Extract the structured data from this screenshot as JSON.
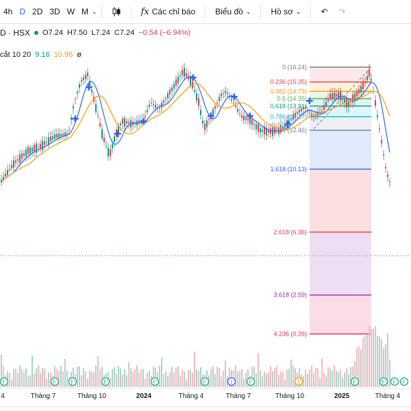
{
  "toolbar": {
    "timeframes": [
      "4h",
      "D",
      "2D",
      "3D",
      "W",
      "M"
    ],
    "active_timeframe": "D",
    "indicators_label": "Các chỉ báo",
    "chart_type_label": "Biểu đồ",
    "profile_label": "Hồ sơ"
  },
  "legend": {
    "symbol": "D · HSX",
    "open": "O7.24",
    "high": "H7.50",
    "low": "L7.24",
    "close": "C7.24",
    "change": "−0.54 (−6.94%)",
    "ma_name": "cắt 10 20",
    "ma_value_1": "9.16",
    "ma_value_2": "10.96",
    "ma_hidden": "ø"
  },
  "colors": {
    "up": "#089981",
    "down": "#f23645",
    "ma_fast": "#2962ff",
    "ma_slow": "#ff9800"
  },
  "chart_data": {
    "type": "candlestick",
    "x_ticks": [
      "4",
      "Tháng 7",
      "Tháng 10",
      "2024",
      "Tháng 4",
      "Tháng 7",
      "Tháng 10",
      "2025",
      "Tháng 4"
    ],
    "bold_ticks": [
      "2024",
      "2025"
    ],
    "fibonacci": [
      {
        "ratio": "0",
        "price": 16.24,
        "label": "0 (16.24)",
        "color": "#787b86"
      },
      {
        "ratio": "0.236",
        "price": 15.35,
        "label": "0.236 (15.35)",
        "color": "#f23645"
      },
      {
        "ratio": "0.382",
        "price": 14.79,
        "label": "0.382 (14.79)",
        "color": "#ff9800"
      },
      {
        "ratio": "0.5",
        "price": 14.35,
        "label": "0.5 (14.35)",
        "color": "#4caf50"
      },
      {
        "ratio": "0.618",
        "price": 13.91,
        "label": "0.618 (13.91)",
        "color": "#089981"
      },
      {
        "ratio": "0.786",
        "price": 13.27,
        "label": "0.786 (13.27)",
        "color": "#00bcd4"
      },
      {
        "ratio": "1",
        "price": 12.46,
        "label": "1 (12.46)",
        "color": "#787b86"
      },
      {
        "ratio": "1.618",
        "price": 10.13,
        "label": "1.618 (10.13)",
        "color": "#2962ff"
      },
      {
        "ratio": "2.618",
        "price": 6.36,
        "label": "2.618 (6.36)",
        "color": "#f23645"
      },
      {
        "ratio": "3.618",
        "price": 2.59,
        "label": "3.618 (2.59)",
        "color": "#9c27b0"
      },
      {
        "ratio": "4.236",
        "price": 0.26,
        "label": "4.236 (0.26)",
        "color": "#e91e63"
      }
    ],
    "last_price": 7.24,
    "event_markers": [
      "F",
      "F",
      "F",
      "F",
      "F",
      "F",
      "I",
      "F",
      "S",
      "F",
      "F",
      "F",
      "F"
    ]
  }
}
